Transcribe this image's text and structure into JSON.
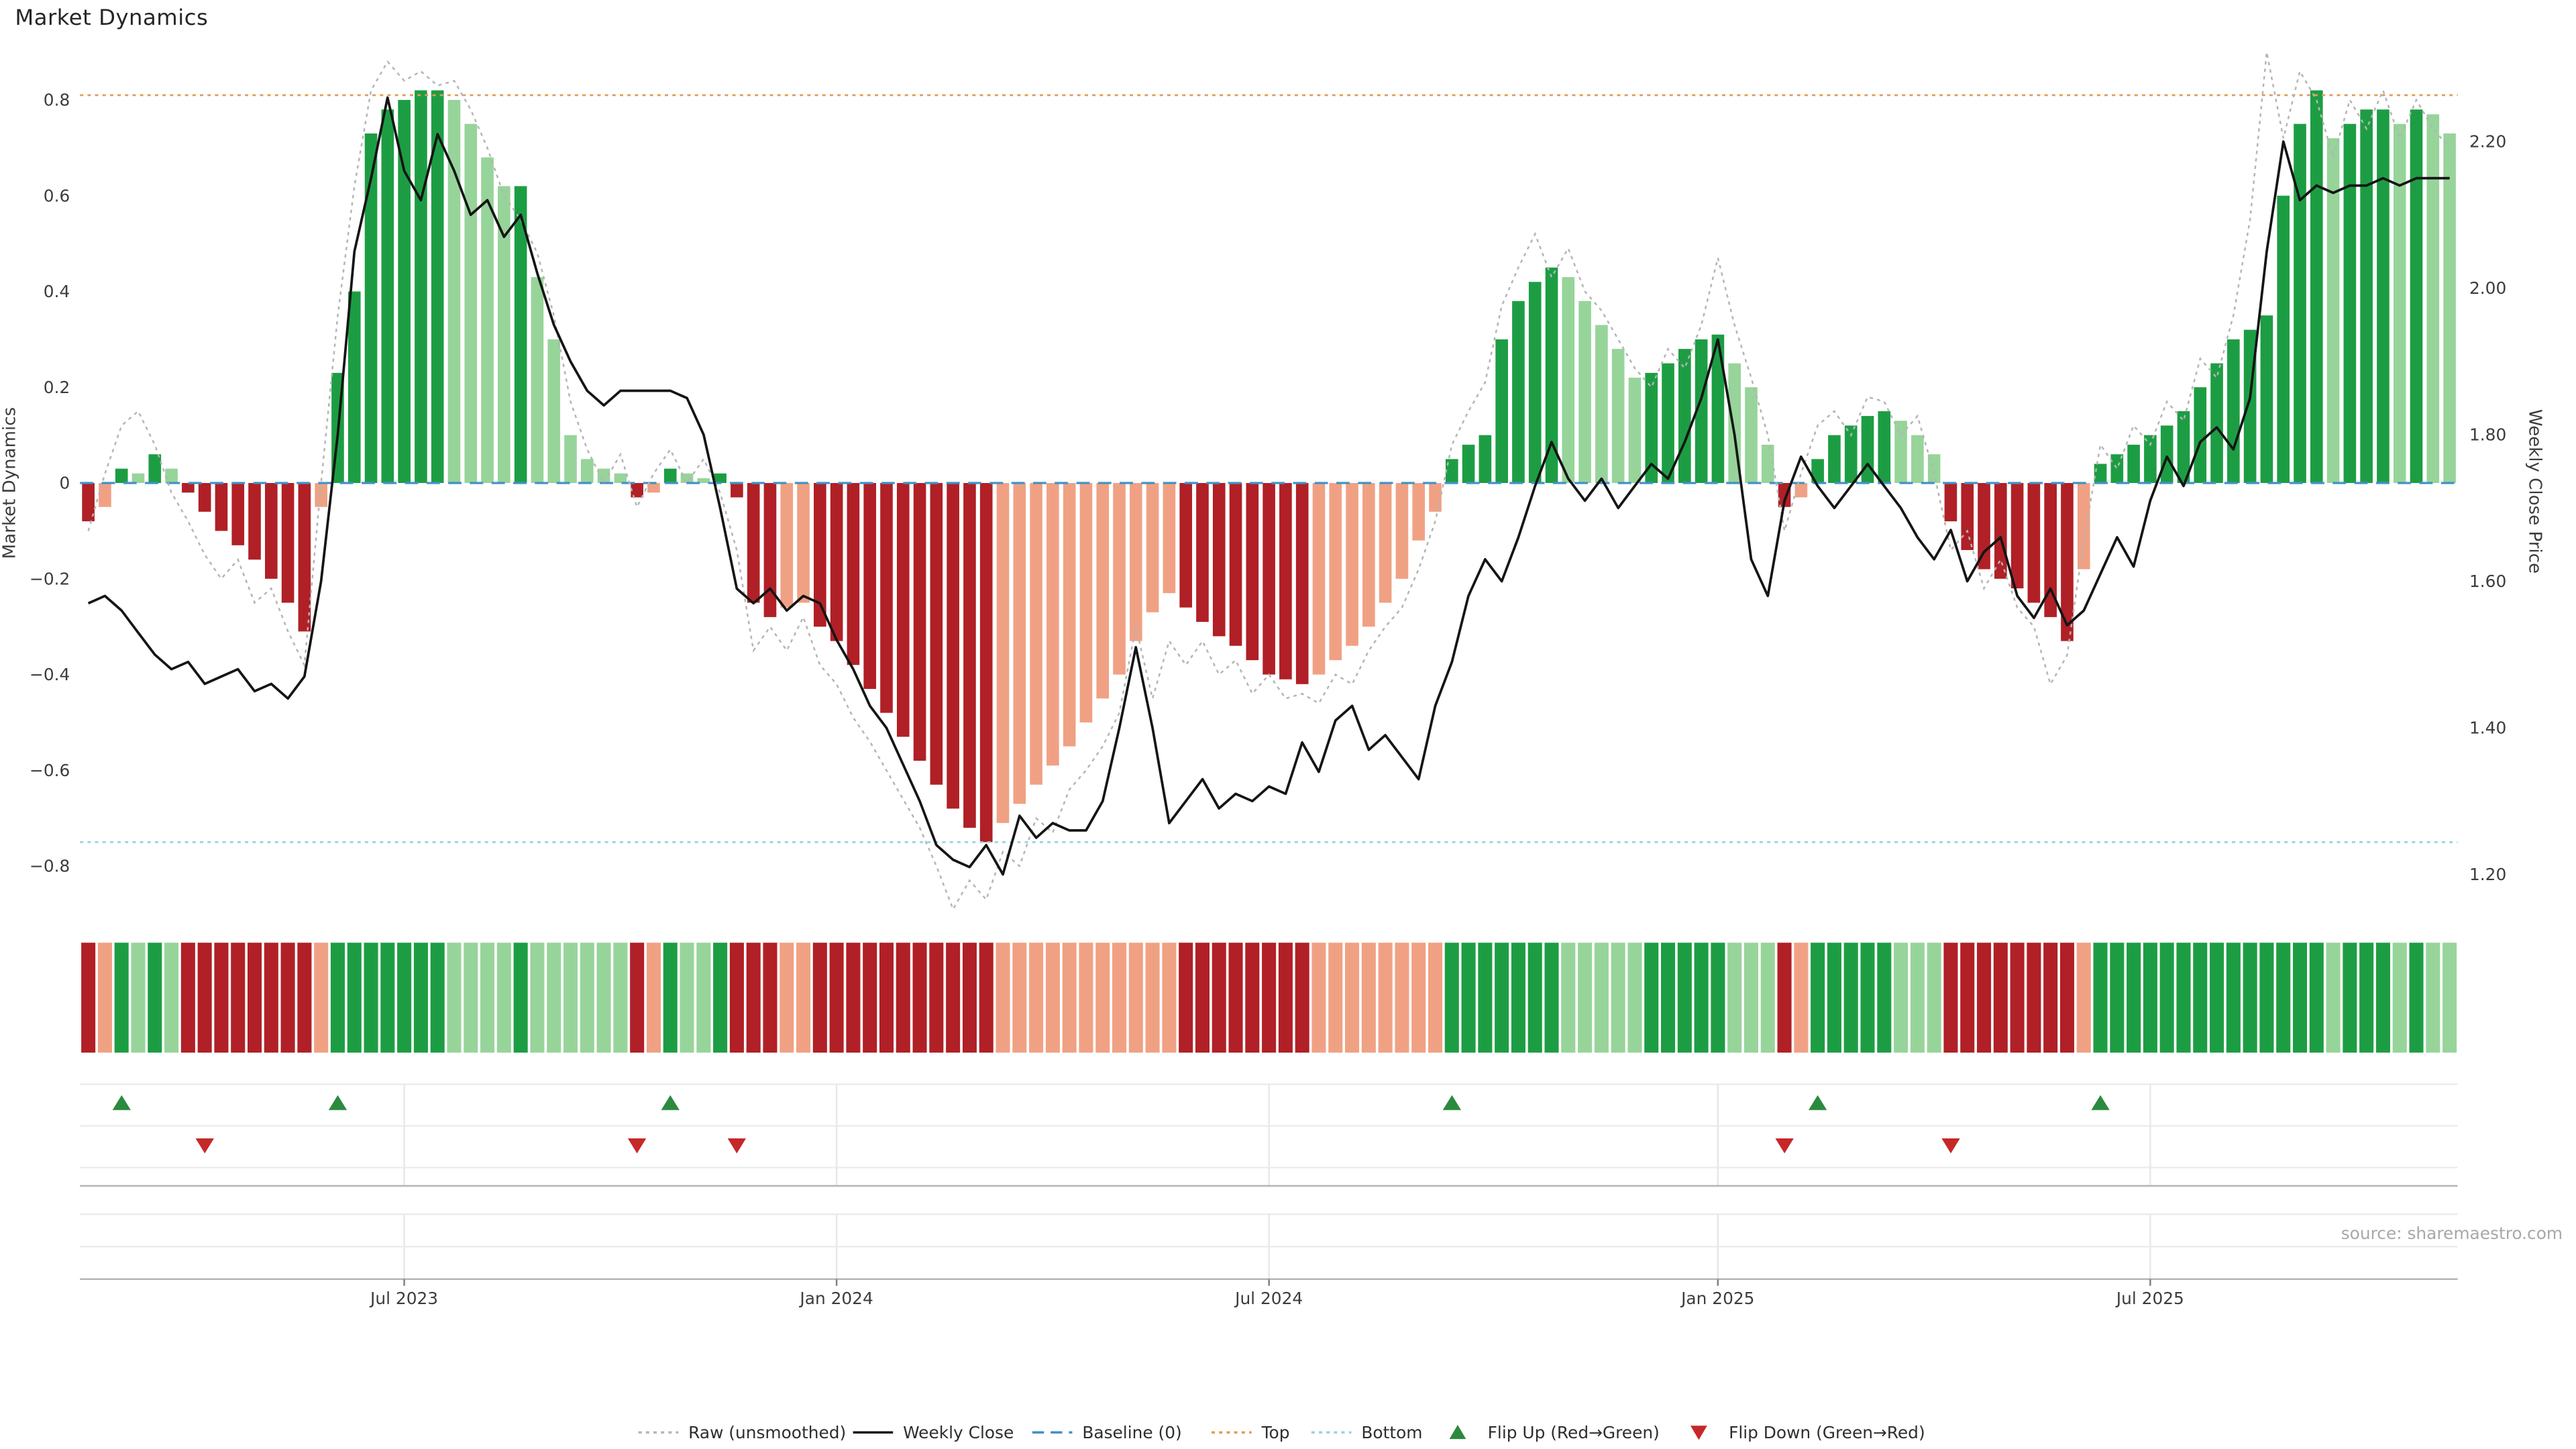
{
  "title": "Market Dynamics",
  "source": "source: sharemaestro.com",
  "chart_data": {
    "type": "bar",
    "description": "Weekly market-dynamics oscillator bars with raw overlay and weekly close price line",
    "dynamics": [
      -0.08,
      -0.05,
      0.03,
      0.02,
      0.06,
      0.03,
      -0.02,
      -0.06,
      -0.1,
      -0.13,
      -0.16,
      -0.2,
      -0.25,
      -0.31,
      -0.05,
      0.23,
      0.4,
      0.73,
      0.78,
      0.8,
      0.82,
      0.82,
      0.8,
      0.75,
      0.68,
      0.62,
      0.62,
      0.43,
      0.3,
      0.1,
      0.05,
      0.03,
      0.02,
      -0.03,
      -0.02,
      0.03,
      0.02,
      0.01,
      0.02,
      -0.03,
      -0.25,
      -0.28,
      -0.26,
      -0.25,
      -0.3,
      -0.33,
      -0.38,
      -0.43,
      -0.48,
      -0.53,
      -0.58,
      -0.63,
      -0.68,
      -0.72,
      -0.75,
      -0.71,
      -0.67,
      -0.63,
      -0.59,
      -0.55,
      -0.5,
      -0.45,
      -0.4,
      -0.33,
      -0.27,
      -0.23,
      -0.26,
      -0.29,
      -0.32,
      -0.34,
      -0.37,
      -0.4,
      -0.41,
      -0.42,
      -0.4,
      -0.37,
      -0.34,
      -0.3,
      -0.25,
      -0.2,
      -0.12,
      -0.06,
      0.05,
      0.08,
      0.1,
      0.3,
      0.38,
      0.42,
      0.45,
      0.43,
      0.38,
      0.33,
      0.28,
      0.22,
      0.23,
      0.25,
      0.28,
      0.3,
      0.31,
      0.25,
      0.2,
      0.08,
      -0.05,
      -0.03,
      0.05,
      0.1,
      0.12,
      0.14,
      0.15,
      0.13,
      0.1,
      0.06,
      -0.08,
      -0.14,
      -0.18,
      -0.2,
      -0.22,
      -0.25,
      -0.28,
      -0.33,
      -0.18,
      0.04,
      0.06,
      0.08,
      0.1,
      0.12,
      0.15,
      0.2,
      0.25,
      0.3,
      0.32,
      0.35,
      0.6,
      0.75,
      0.82,
      0.72,
      0.75,
      0.78,
      0.78,
      0.75,
      0.78,
      0.77,
      0.73
    ],
    "raw": [
      -0.1,
      0.02,
      0.12,
      0.15,
      0.08,
      -0.02,
      -0.08,
      -0.15,
      -0.2,
      -0.16,
      -0.25,
      -0.22,
      -0.31,
      -0.38,
      0.0,
      0.35,
      0.62,
      0.82,
      0.88,
      0.84,
      0.86,
      0.83,
      0.84,
      0.78,
      0.7,
      0.6,
      0.55,
      0.48,
      0.35,
      0.17,
      0.07,
      0.0,
      0.06,
      -0.05,
      0.02,
      0.07,
      0.0,
      0.05,
      -0.02,
      -0.14,
      -0.35,
      -0.3,
      -0.35,
      -0.28,
      -0.38,
      -0.42,
      -0.49,
      -0.54,
      -0.6,
      -0.66,
      -0.72,
      -0.8,
      -0.89,
      -0.83,
      -0.87,
      -0.77,
      -0.8,
      -0.7,
      -0.73,
      -0.64,
      -0.6,
      -0.55,
      -0.48,
      -0.3,
      -0.45,
      -0.33,
      -0.38,
      -0.33,
      -0.4,
      -0.37,
      -0.44,
      -0.4,
      -0.45,
      -0.44,
      -0.46,
      -0.4,
      -0.42,
      -0.35,
      -0.3,
      -0.26,
      -0.18,
      -0.08,
      0.08,
      0.15,
      0.21,
      0.37,
      0.45,
      0.52,
      0.43,
      0.49,
      0.4,
      0.36,
      0.3,
      0.24,
      0.2,
      0.28,
      0.24,
      0.33,
      0.47,
      0.33,
      0.22,
      0.1,
      -0.1,
      0.02,
      0.12,
      0.15,
      0.1,
      0.18,
      0.17,
      0.1,
      0.14,
      0.02,
      -0.14,
      -0.1,
      -0.22,
      -0.16,
      -0.26,
      -0.3,
      -0.42,
      -0.36,
      -0.12,
      0.08,
      0.03,
      0.12,
      0.08,
      0.17,
      0.13,
      0.26,
      0.22,
      0.35,
      0.55,
      0.9,
      0.72,
      0.86,
      0.8,
      0.68,
      0.8,
      0.74,
      0.82,
      0.72,
      0.8,
      0.74,
      0.7
    ],
    "weekly_close": [
      1.57,
      1.58,
      1.56,
      1.53,
      1.5,
      1.48,
      1.49,
      1.46,
      1.47,
      1.48,
      1.45,
      1.46,
      1.44,
      1.47,
      1.6,
      1.8,
      2.05,
      2.15,
      2.26,
      2.16,
      2.12,
      2.21,
      2.16,
      2.1,
      2.12,
      2.07,
      2.1,
      2.02,
      1.95,
      1.9,
      1.86,
      1.84,
      1.86,
      1.86,
      1.86,
      1.86,
      1.85,
      1.8,
      1.7,
      1.59,
      1.57,
      1.59,
      1.56,
      1.58,
      1.57,
      1.52,
      1.48,
      1.43,
      1.4,
      1.35,
      1.3,
      1.24,
      1.22,
      1.21,
      1.24,
      1.2,
      1.28,
      1.25,
      1.27,
      1.26,
      1.26,
      1.3,
      1.4,
      1.51,
      1.4,
      1.27,
      1.3,
      1.33,
      1.29,
      1.31,
      1.3,
      1.32,
      1.31,
      1.38,
      1.34,
      1.41,
      1.43,
      1.37,
      1.39,
      1.36,
      1.33,
      1.43,
      1.49,
      1.58,
      1.63,
      1.6,
      1.66,
      1.73,
      1.79,
      1.74,
      1.71,
      1.74,
      1.7,
      1.73,
      1.76,
      1.74,
      1.79,
      1.85,
      1.93,
      1.8,
      1.63,
      1.58,
      1.71,
      1.77,
      1.73,
      1.7,
      1.73,
      1.76,
      1.73,
      1.7,
      1.66,
      1.63,
      1.67,
      1.6,
      1.64,
      1.66,
      1.58,
      1.55,
      1.59,
      1.54,
      1.56,
      1.61,
      1.66,
      1.62,
      1.71,
      1.77,
      1.73,
      1.79,
      1.81,
      1.78,
      1.85,
      2.05,
      2.2,
      2.12,
      2.14,
      2.13,
      2.14,
      2.14,
      2.15,
      2.14,
      2.15,
      2.15,
      2.15
    ],
    "x_ticks": [
      {
        "index": 19,
        "label": "Jul 2023"
      },
      {
        "index": 45,
        "label": "Jan 2024"
      },
      {
        "index": 71,
        "label": "Jul 2024"
      },
      {
        "index": 98,
        "label": "Jan 2025"
      },
      {
        "index": 124,
        "label": "Jul 2025"
      }
    ],
    "y_axis_left": {
      "label": "Market Dynamics",
      "min": -0.9,
      "max": 0.9,
      "ticks": [
        {
          "v": 0.8,
          "label": "0.8"
        },
        {
          "v": 0.6,
          "label": "0.6"
        },
        {
          "v": 0.4,
          "label": "0.4"
        },
        {
          "v": 0.2,
          "label": "0.2"
        },
        {
          "v": 0,
          "label": "0"
        },
        {
          "v": -0.2,
          "label": "−0.2"
        },
        {
          "v": -0.4,
          "label": "−0.4"
        },
        {
          "v": -0.6,
          "label": "−0.6"
        },
        {
          "v": -0.8,
          "label": "−0.8"
        }
      ]
    },
    "y_axis_right": {
      "label": "Weekly Close Price",
      "min": 1.2,
      "max": 2.2,
      "ticks": [
        {
          "v": 2.2,
          "label": "2.20"
        },
        {
          "v": 2.0,
          "label": "2.00"
        },
        {
          "v": 1.8,
          "label": "1.80"
        },
        {
          "v": 1.6,
          "label": "1.60"
        },
        {
          "v": 1.4,
          "label": "1.40"
        },
        {
          "v": 1.2,
          "label": "1.20"
        }
      ]
    },
    "reference_lines": {
      "baseline": 0,
      "top": 0.81,
      "bottom": -0.75
    },
    "flip_up_indices": [
      2,
      15,
      35,
      82,
      104,
      121
    ],
    "flip_down_indices": [
      7,
      33,
      39,
      102,
      112
    ],
    "colors": {
      "bar_up_strong": "#1d9d43",
      "bar_up_fade": "#97d49a",
      "bar_down_strong": "#b02026",
      "bar_down_fade": "#f0a184",
      "raw_line": "#b5b5b5",
      "close_line": "#151515",
      "baseline": "#4292c6",
      "top_line": "#e09c56",
      "bottom_line": "#98d1e4",
      "flip_up": "#2b8a3e",
      "flip_down": "#c62828"
    },
    "legend": {
      "items": [
        {
          "label": "Raw (unsmoothed)",
          "sample": "dotted-line",
          "color": "#b5b5b5"
        },
        {
          "label": "Weekly Close",
          "sample": "solid-line",
          "color": "#151515"
        },
        {
          "label": "Baseline (0)",
          "sample": "dashed-line",
          "color": "#4292c6"
        },
        {
          "label": "Top",
          "sample": "dotted-line",
          "color": "#e09c56"
        },
        {
          "label": "Bottom",
          "sample": "dotted-line",
          "color": "#98d1e4"
        },
        {
          "label": "Flip Up (Red→Green)",
          "sample": "up-triangle",
          "color": "#2b8a3e"
        },
        {
          "label": "Flip Down (Green→Red)",
          "sample": "down-triangle",
          "color": "#c62828"
        }
      ]
    }
  }
}
